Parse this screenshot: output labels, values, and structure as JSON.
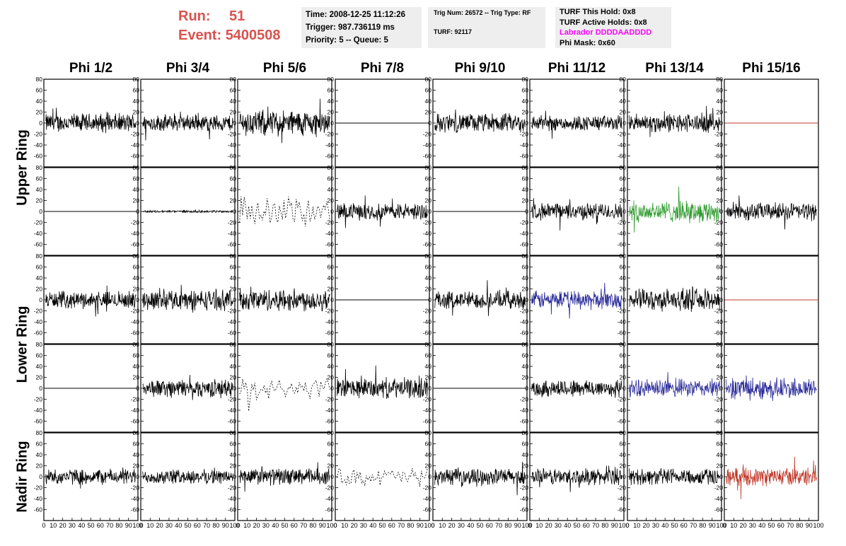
{
  "run_info": {
    "run_label": "Run:",
    "run_value": "51",
    "event_label": "Event:",
    "event_value": "5400508"
  },
  "time_box": {
    "time": "Time: 2008-12-25 11:12:26",
    "trigger": "Trigger: 987.736119 ms",
    "priority": "Priority: 5 -- Queue: 5"
  },
  "trig_box": {
    "trig": "Trig Num: 26572 -- Trig Type: RF",
    "turf": "TURF: 92117"
  },
  "turf_box": {
    "this_hold": "TURF This Hold: 0x8",
    "active_holds": "TURF Active Holds: 0x8",
    "labrador": "Labrador DDDDAADDDD",
    "phi_mask": "Phi Mask: 0x60"
  },
  "columns": [
    "Phi 1/2",
    "Phi 3/4",
    "Phi 5/6",
    "Phi 7/8",
    "Phi 9/10",
    "Phi 11/12",
    "Phi 13/14",
    "Phi 15/16"
  ],
  "rings": [
    {
      "name": "Upper Ring",
      "rows": [
        0,
        1
      ]
    },
    {
      "name": "Lower Ring",
      "rows": [
        2,
        3
      ]
    },
    {
      "name": "Nadir Ring",
      "rows": [
        4
      ]
    }
  ],
  "colors": {
    "black": "#000000",
    "red": "#c0392b",
    "blue": "#2b2b9a",
    "green": "#2e9a2e",
    "run_text": "#d9534f",
    "labrador": "#ff00ff"
  },
  "chart_data": {
    "type": "line",
    "ylim": [
      -80,
      80
    ],
    "xlim": [
      0,
      100
    ],
    "y_ticks": [
      -80,
      -60,
      -40,
      -20,
      0,
      20,
      40,
      60,
      80
    ],
    "y_tick_labels": [
      "-60",
      "-40",
      "-20",
      "0",
      "20",
      "40",
      "60",
      "80"
    ],
    "x_ticks": [
      0,
      10,
      20,
      30,
      40,
      50,
      60,
      70,
      80,
      90,
      100
    ],
    "x_tick_labels": [
      "0",
      "10",
      "20",
      "30",
      "40",
      "50",
      "60",
      "70",
      "80",
      "90",
      "100"
    ],
    "panels": [
      [
        {
          "style": "noise",
          "amp": 16,
          "color": "black"
        },
        {
          "style": "noise",
          "amp": 14,
          "color": "black"
        },
        {
          "style": "noise",
          "amp": 22,
          "color": "black"
        },
        {
          "style": "flat",
          "amp": 0,
          "color": "black"
        },
        {
          "style": "noise",
          "amp": 16,
          "color": "black"
        },
        {
          "style": "noise",
          "amp": 13,
          "color": "black"
        },
        {
          "style": "noise",
          "amp": 16,
          "color": "black"
        },
        {
          "style": "flat",
          "amp": 0,
          "color": "red"
        }
      ],
      [
        {
          "style": "flat",
          "amp": 0,
          "color": "black"
        },
        {
          "style": "noise",
          "amp": 2,
          "color": "black"
        },
        {
          "style": "dashed",
          "amp": 24,
          "color": "black"
        },
        {
          "style": "noise",
          "amp": 14,
          "color": "black"
        },
        {
          "style": "flat",
          "amp": 0,
          "color": "black"
        },
        {
          "style": "noise",
          "amp": 14,
          "color": "black"
        },
        {
          "style": "noise",
          "amp": 18,
          "color": "green"
        },
        {
          "style": "noise",
          "amp": 15,
          "color": "black"
        }
      ],
      [
        {
          "style": "noise",
          "amp": 14,
          "color": "black"
        },
        {
          "style": "noise",
          "amp": 17,
          "color": "black"
        },
        {
          "style": "noise",
          "amp": 19,
          "color": "black"
        },
        {
          "style": "flat",
          "amp": 0,
          "color": "black"
        },
        {
          "style": "noise",
          "amp": 15,
          "color": "black"
        },
        {
          "style": "noise",
          "amp": 15,
          "color": "blue"
        },
        {
          "style": "noise",
          "amp": 18,
          "color": "black"
        },
        {
          "style": "flat",
          "amp": 0,
          "color": "red"
        }
      ],
      [
        {
          "style": "flat",
          "amp": 0,
          "color": "black"
        },
        {
          "style": "noise",
          "amp": 15,
          "color": "black"
        },
        {
          "style": "dashed",
          "amp": 18,
          "color": "black"
        },
        {
          "style": "noise",
          "amp": 17,
          "color": "black"
        },
        {
          "style": "flat",
          "amp": 0,
          "color": "black"
        },
        {
          "style": "noise",
          "amp": 15,
          "color": "black"
        },
        {
          "style": "noise",
          "amp": 15,
          "color": "blue"
        },
        {
          "style": "noise",
          "amp": 18,
          "color": "blue"
        }
      ],
      [
        {
          "style": "noise",
          "amp": 13,
          "color": "black"
        },
        {
          "style": "noise",
          "amp": 12,
          "color": "black"
        },
        {
          "style": "noise",
          "amp": 14,
          "color": "black"
        },
        {
          "style": "dashed",
          "amp": 15,
          "color": "black"
        },
        {
          "style": "noise",
          "amp": 14,
          "color": "black"
        },
        {
          "style": "noise",
          "amp": 14,
          "color": "black"
        },
        {
          "style": "noise",
          "amp": 14,
          "color": "black"
        },
        {
          "style": "noise",
          "amp": 15,
          "color": "red"
        }
      ]
    ]
  }
}
